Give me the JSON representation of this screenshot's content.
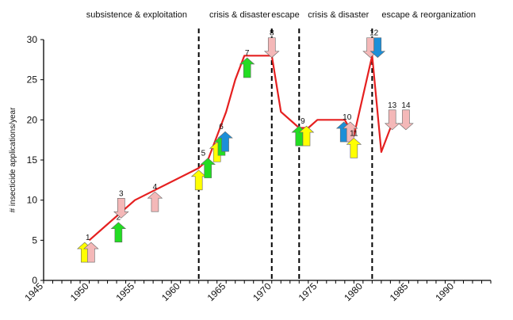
{
  "chart_data": {
    "type": "line",
    "title": "",
    "xlabel": "",
    "ylabel": "# insecticide applications/year",
    "xlim": [
      1945,
      1994
    ],
    "ylim": [
      0,
      30
    ],
    "x_ticks": [
      1945,
      1950,
      1955,
      1960,
      1965,
      1970,
      1975,
      1980,
      1985,
      1990
    ],
    "y_ticks": [
      0,
      5,
      10,
      15,
      20,
      25,
      30
    ],
    "grid": false,
    "line_color": "#e52020",
    "series": [
      {
        "segments": [
          [
            [
              1950,
              5
            ],
            [
              1955,
              10
            ],
            [
              1962,
              14
            ],
            [
              1963,
              15
            ],
            [
              1964,
              18
            ],
            [
              1965,
              21
            ],
            [
              1966,
              25
            ],
            [
              1967,
              28
            ],
            [
              1970,
              28
            ],
            [
              1971,
              21
            ],
            [
              1973,
              19
            ],
            [
              1974,
              19
            ],
            [
              1975,
              20
            ],
            [
              1978,
              20
            ],
            [
              1979,
              18
            ],
            [
              1981,
              28
            ],
            [
              1982,
              16
            ],
            [
              1983,
              19
            ]
          ]
        ]
      }
    ],
    "phase_dividers": [
      1962,
      1970,
      1973,
      1981
    ],
    "phases": [
      {
        "label": "subsistence & exploitation",
        "x_center": 1955.2
      },
      {
        "label": "crisis & disaster",
        "x_center": 1966.5
      },
      {
        "label": "escape",
        "x_center": 1971.5
      },
      {
        "label": "crisis & disaster",
        "x_center": 1977.3
      },
      {
        "label": "escape & reorganization",
        "x_center": 1987.2
      }
    ],
    "arrow_colors": {
      "yellow": "#ffff00",
      "pink": "#f4b8b8",
      "green": "#22dd22",
      "blue": "#1c8fd8"
    },
    "events": [
      {
        "label": "1",
        "arrows": [
          {
            "x": 1949.5,
            "y": 3.5,
            "color": "yellow",
            "dir": "up"
          },
          {
            "x": 1950.2,
            "y": 3.5,
            "color": "pink",
            "dir": "up"
          }
        ]
      },
      {
        "label": "2",
        "arrows": [
          {
            "x": 1953.2,
            "y": 6.0,
            "color": "green",
            "dir": "up"
          }
        ]
      },
      {
        "label": "3",
        "arrows": [
          {
            "x": 1953.5,
            "y": 9.0,
            "color": "pink",
            "dir": "down"
          }
        ]
      },
      {
        "label": "4",
        "arrows": [
          {
            "x": 1957.2,
            "y": 9.8,
            "color": "pink",
            "dir": "up"
          }
        ]
      },
      {
        "label": "5",
        "arrows": [
          {
            "x": 1962.0,
            "y": 12.5,
            "color": "yellow",
            "dir": "up"
          },
          {
            "x": 1963.0,
            "y": 14.0,
            "color": "green",
            "dir": "up"
          }
        ]
      },
      {
        "label": "6",
        "arrows": [
          {
            "x": 1964.0,
            "y": 16.0,
            "color": "yellow",
            "dir": "up"
          },
          {
            "x": 1964.5,
            "y": 16.8,
            "color": "green",
            "dir": "up"
          },
          {
            "x": 1964.9,
            "y": 17.3,
            "color": "blue",
            "dir": "up"
          }
        ]
      },
      {
        "label": "7",
        "arrows": [
          {
            "x": 1967.3,
            "y": 26.5,
            "color": "green",
            "dir": "up"
          }
        ]
      },
      {
        "label": "8",
        "arrows": [
          {
            "x": 1970.0,
            "y": 29.0,
            "color": "pink",
            "dir": "down"
          }
        ]
      },
      {
        "label": "9",
        "arrows": [
          {
            "x": 1973.0,
            "y": 18.0,
            "color": "green",
            "dir": "up"
          },
          {
            "x": 1973.8,
            "y": 18.0,
            "color": "yellow",
            "dir": "up"
          }
        ]
      },
      {
        "label": "10",
        "arrows": [
          {
            "x": 1977.9,
            "y": 18.5,
            "color": "blue",
            "dir": "up"
          },
          {
            "x": 1978.6,
            "y": 18.5,
            "color": "pink",
            "dir": "up"
          }
        ]
      },
      {
        "label": "11",
        "arrows": [
          {
            "x": 1979.0,
            "y": 16.5,
            "color": "yellow",
            "dir": "up"
          }
        ]
      },
      {
        "label": "12",
        "arrows": [
          {
            "x": 1980.8,
            "y": 29.0,
            "color": "pink",
            "dir": "down"
          },
          {
            "x": 1981.6,
            "y": 29.0,
            "color": "blue",
            "dir": "down"
          }
        ]
      },
      {
        "label": "13",
        "arrows": [
          {
            "x": 1983.2,
            "y": 20.0,
            "color": "pink",
            "dir": "down"
          }
        ]
      },
      {
        "label": "14",
        "arrows": [
          {
            "x": 1984.7,
            "y": 20.0,
            "color": "pink",
            "dir": "down"
          }
        ]
      }
    ]
  }
}
